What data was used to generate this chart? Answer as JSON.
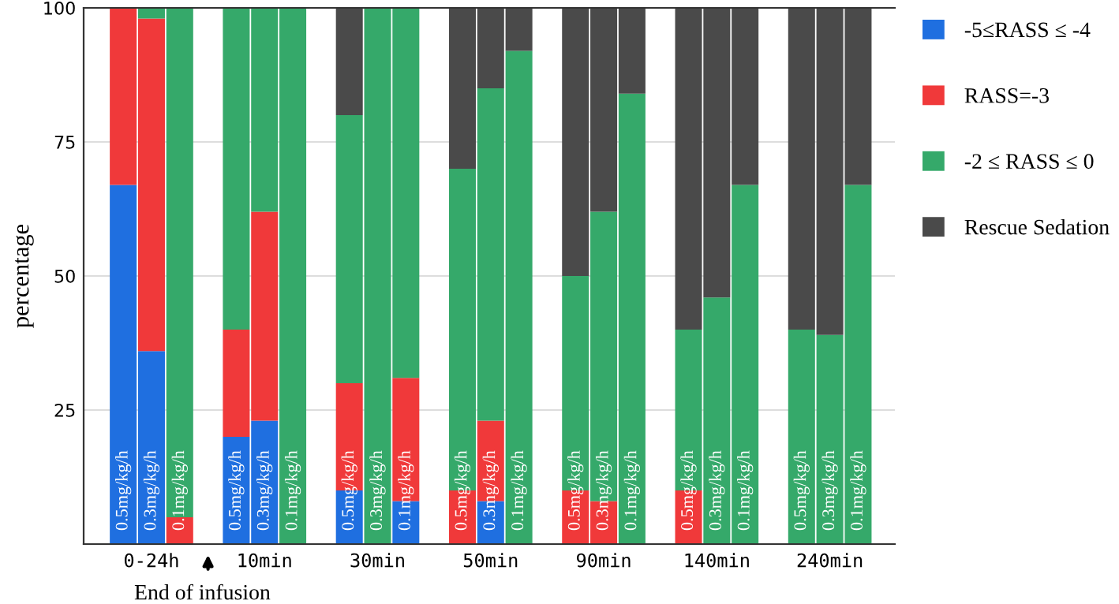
{
  "chart_data": {
    "type": "bar",
    "stacked": true,
    "ylabel": "percentage",
    "categories": [
      "0.5mg/kg/h",
      "0.3mg/kg/h",
      "0.1mg/kg/h",
      "0.5mg/kg/h",
      "0.3mg/kg/h",
      "0.1mg/kg/h",
      "0.5mg/kg/h",
      "0.3mg/kg/h",
      "0.1mg/kg/h",
      "0.5mg/kg/h",
      "0.3mg/kg/h",
      "0.1mg/kg/h",
      "0.5mg/kg/h",
      "0.3mg/kg/h",
      "0.1mg/kg/h",
      "0.5mg/kg/h",
      "0.3mg/kg/h",
      "0.1mg/kg/h",
      "0.5mg/kg/h",
      "0.3mg/kg/h",
      "0.1mg/kg/h"
    ],
    "series": [
      {
        "name": "-5≤RASS ≤ -4",
        "color": "#1f6fe0",
        "values": [
          67,
          36,
          0,
          20,
          23,
          0,
          10,
          0,
          8,
          0,
          8,
          0,
          0,
          0,
          0,
          0,
          0,
          0,
          0,
          0,
          0
        ]
      },
      {
        "name": "RASS=-3",
        "color": "#f0393a",
        "values": [
          33,
          62,
          5,
          20,
          39,
          0,
          20,
          0,
          23,
          10,
          15,
          0,
          10,
          8,
          0,
          10,
          0,
          0,
          0,
          0,
          0
        ]
      },
      {
        "name": "-2 ≤ RASS ≤ 0",
        "color": "#35a96a",
        "values": [
          0,
          2,
          95,
          60,
          38,
          100,
          50,
          100,
          69,
          60,
          62,
          92,
          40,
          54,
          84,
          30,
          46,
          67,
          40,
          39,
          67
        ]
      },
      {
        "name": "Rescue Sedation",
        "color": "#4a4a4a",
        "values": [
          0,
          0,
          0,
          0,
          0,
          0,
          20,
          0,
          0,
          30,
          15,
          8,
          50,
          38,
          16,
          60,
          54,
          33,
          60,
          61,
          33
        ]
      }
    ],
    "ylim": [
      0,
      100
    ],
    "yticks": [
      25,
      50,
      75,
      100
    ],
    "grid": "y",
    "legend": "right",
    "annotations": [
      "0-24h",
      "10min",
      "30min",
      "50min",
      "90min",
      "140min",
      "240min",
      "End of infusion"
    ]
  }
}
